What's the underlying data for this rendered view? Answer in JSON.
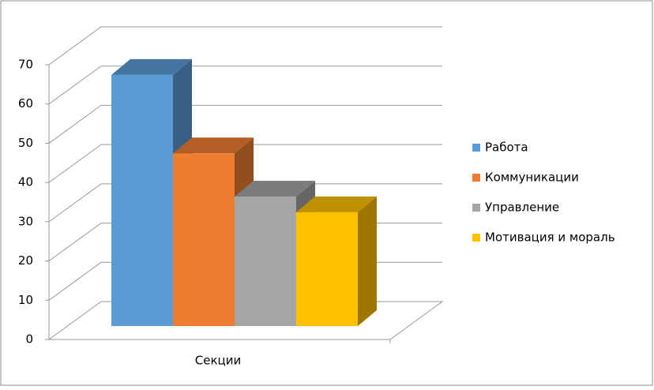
{
  "chart_data": {
    "type": "bar3d",
    "categories": [
      "Секции"
    ],
    "series": [
      {
        "name": "Работа",
        "color": "#5b9bd5",
        "values": [
          64
        ]
      },
      {
        "name": "Коммуникации",
        "color": "#ed7d31",
        "values": [
          44
        ]
      },
      {
        "name": "Управление",
        "color": "#a5a5a5",
        "values": [
          33
        ]
      },
      {
        "name": "Мотивация и мораль",
        "color": "#ffc000",
        "values": [
          29
        ]
      }
    ],
    "ylim": [
      0,
      70
    ],
    "yticks": [
      0,
      10,
      20,
      30,
      40,
      50,
      60,
      70
    ],
    "grid": true,
    "legend": "right"
  }
}
